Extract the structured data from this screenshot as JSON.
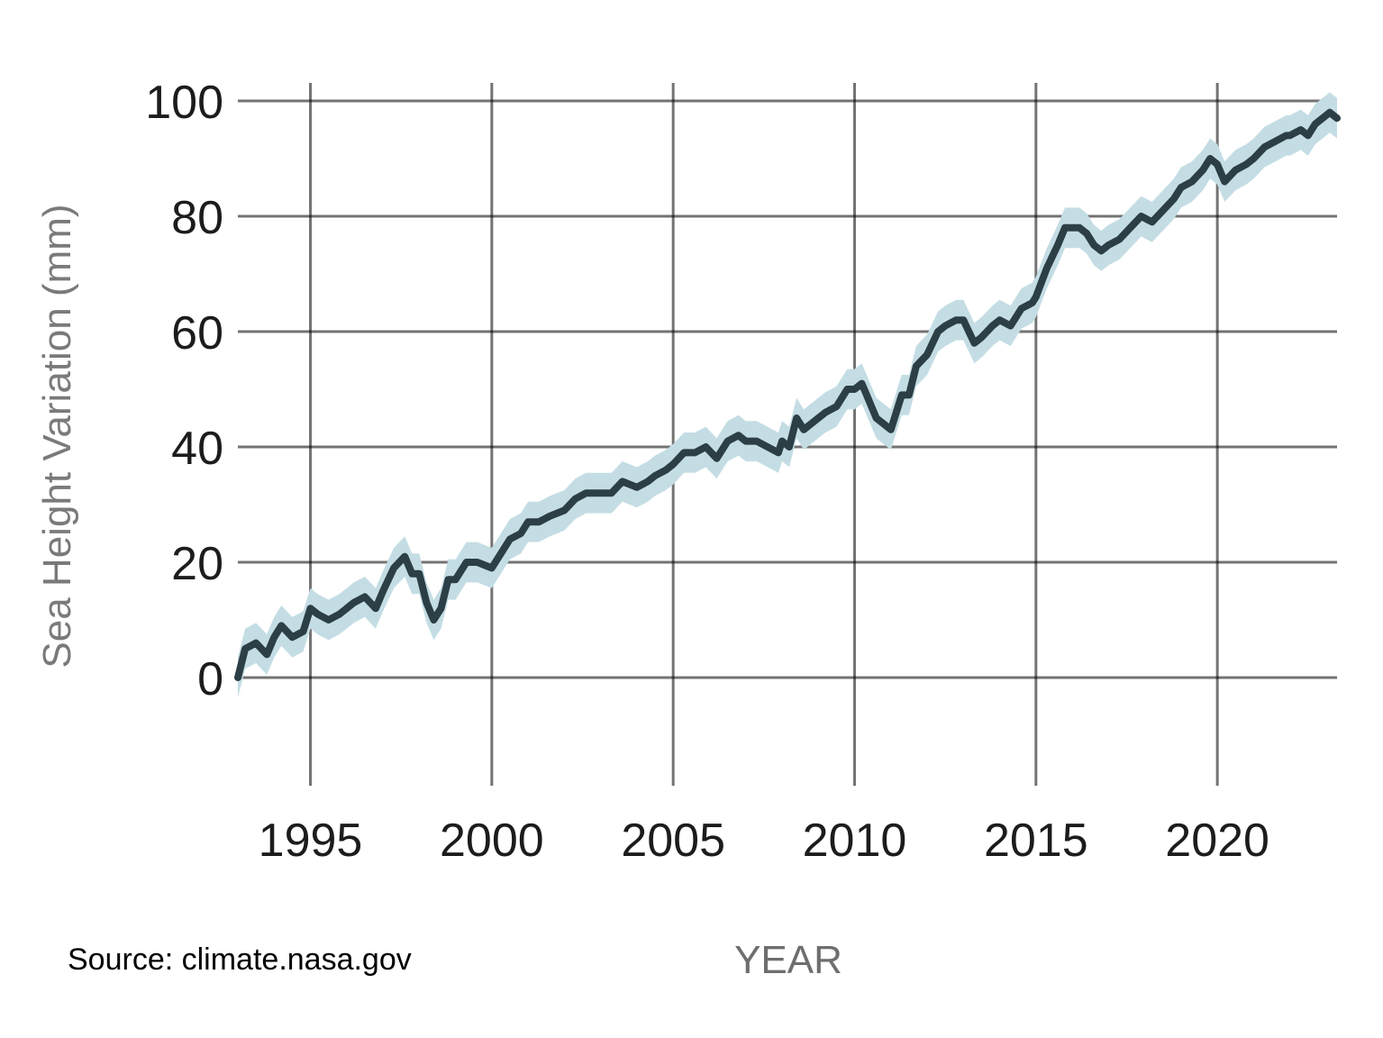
{
  "chart_data": {
    "type": "line",
    "title": "",
    "xlabel": "YEAR",
    "ylabel": "Sea Height Variation (mm)",
    "source": "Source: climate.nasa.gov",
    "xlim": [
      1993.0,
      2023.3
    ],
    "ylim": [
      -19,
      103
    ],
    "x_ticks": [
      1995,
      2000,
      2005,
      2010,
      2015,
      2020
    ],
    "x_tick_labels": [
      "1995",
      "2000",
      "2005",
      "2010",
      "2015",
      "2020"
    ],
    "y_ticks": [
      0,
      20,
      40,
      60,
      80,
      100
    ],
    "y_tick_labels": [
      "0",
      "20",
      "40",
      "60",
      "80",
      "100"
    ],
    "grid": true,
    "colors": {
      "line": "#2c3e46",
      "band": "#c4dde4",
      "grid": "#000000"
    },
    "band_halfwidth": 3.5,
    "series": [
      {
        "x": [
          1993.0,
          1993.2,
          1993.5,
          1993.8,
          1994.0,
          1994.2,
          1994.5,
          1994.8,
          1995.0,
          1995.2,
          1995.5,
          1995.8,
          1996.0,
          1996.2,
          1996.5,
          1996.8,
          1997.0,
          1997.3,
          1997.6,
          1997.8,
          1998.0,
          1998.2,
          1998.4,
          1998.6,
          1998.8,
          1999.0,
          1999.3,
          1999.6,
          2000.0,
          2000.3,
          2000.5,
          2000.8,
          2001.0,
          2001.3,
          2001.6,
          2002.0,
          2002.3,
          2002.6,
          2003.0,
          2003.3,
          2003.6,
          2004.0,
          2004.3,
          2004.5,
          2004.8,
          2005.0,
          2005.3,
          2005.6,
          2005.9,
          2006.2,
          2006.5,
          2006.8,
          2007.0,
          2007.3,
          2007.6,
          2007.9,
          2008.0,
          2008.2,
          2008.4,
          2008.6,
          2008.8,
          2009.0,
          2009.2,
          2009.5,
          2009.8,
          2010.0,
          2010.2,
          2010.4,
          2010.6,
          2010.8,
          2011.0,
          2011.3,
          2011.5,
          2011.7,
          2012.0,
          2012.3,
          2012.5,
          2012.8,
          2013.0,
          2013.3,
          2013.5,
          2013.8,
          2014.0,
          2014.3,
          2014.6,
          2014.9,
          2015.0,
          2015.3,
          2015.6,
          2015.8,
          2016.0,
          2016.2,
          2016.4,
          2016.6,
          2016.8,
          2017.0,
          2017.3,
          2017.6,
          2017.9,
          2018.2,
          2018.5,
          2018.8,
          2019.0,
          2019.3,
          2019.6,
          2019.8,
          2020.0,
          2020.2,
          2020.5,
          2020.8,
          2021.0,
          2021.3,
          2021.6,
          2021.9,
          2022.0,
          2022.3,
          2022.5,
          2022.7,
          2022.9,
          2023.1,
          2023.3
        ],
        "y": [
          0,
          5,
          6,
          4,
          7,
          9,
          7,
          8,
          12,
          11,
          10,
          11,
          12,
          13,
          14,
          12,
          15,
          19,
          21,
          18,
          18,
          13,
          10,
          12,
          17,
          17,
          20,
          20,
          19,
          22,
          24,
          25,
          27,
          27,
          28,
          29,
          31,
          32,
          32,
          32,
          34,
          33,
          34,
          35,
          36,
          37,
          39,
          39,
          40,
          38,
          41,
          42,
          41,
          41,
          40,
          39,
          41,
          40,
          45,
          43,
          44,
          45,
          46,
          47,
          50,
          50,
          51,
          48,
          45,
          44,
          43,
          49,
          49,
          54,
          56,
          60,
          61,
          62,
          62,
          58,
          59,
          61,
          62,
          61,
          64,
          65,
          66,
          71,
          75,
          78,
          78,
          78,
          77,
          75,
          74,
          75,
          76,
          78,
          80,
          79,
          81,
          83,
          85,
          86,
          88,
          90,
          89,
          86,
          88,
          89,
          90,
          92,
          93,
          94,
          94,
          95,
          94,
          96,
          97,
          98,
          97
        ]
      }
    ]
  }
}
